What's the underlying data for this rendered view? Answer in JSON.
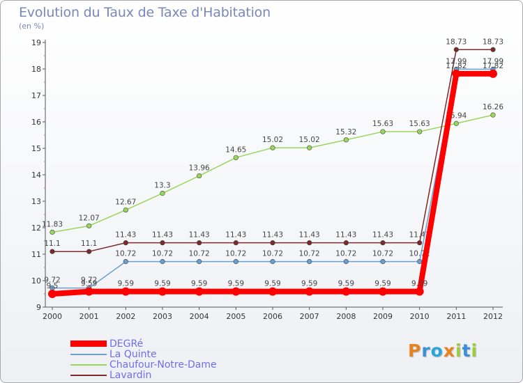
{
  "header": {
    "title": "Evolution du Taux de Taxe d'Habitation",
    "subtitle": "(en %)"
  },
  "logo": {
    "letters": [
      "P",
      "r",
      "o",
      "x",
      "i",
      "t",
      "i"
    ],
    "colors": [
      "#e8821e",
      "#3a8fd6",
      "#2aa7d8",
      "#e8821e",
      "#9ccc3b",
      "#3a8fd6",
      "#9ccc3b"
    ]
  },
  "chart_data": {
    "type": "line",
    "x": [
      "2000",
      "2001",
      "2002",
      "2003",
      "2004",
      "2005",
      "2006",
      "2007",
      "2008",
      "2009",
      "2010",
      "2011",
      "2012"
    ],
    "ylim": [
      9,
      19
    ],
    "yticks": [
      "9",
      "10",
      "11",
      "12",
      "13",
      "14",
      "15",
      "16",
      "17",
      "18",
      "19"
    ],
    "grid": false,
    "legend_position": "bottom-left",
    "series": [
      {
        "name": "Chaufour-Notre-Dame",
        "color": "#99d65c",
        "values": [
          11.83,
          12.07,
          12.67,
          13.3,
          13.96,
          14.65,
          15.02,
          15.02,
          15.32,
          15.63,
          15.63,
          15.94,
          16.26
        ],
        "labels": [
          "11.83",
          "12.07",
          "12.67",
          "13.3",
          "13.96",
          "14.65",
          "15.02",
          "15.02",
          "15.32",
          "15.63",
          "15.63",
          "15.94",
          "16.26"
        ]
      },
      {
        "name": "Lavardin",
        "color": "#7a2a2a",
        "values": [
          11.1,
          11.1,
          11.43,
          11.43,
          11.43,
          11.43,
          11.43,
          11.43,
          11.43,
          11.43,
          11.43,
          18.73,
          18.73
        ],
        "labels": [
          "11.1",
          "11.1",
          "11.43",
          "11.43",
          "11.43",
          "11.43",
          "11.43",
          "11.43",
          "11.43",
          "11.43",
          "11.43",
          "18.73",
          "18.73"
        ]
      },
      {
        "name": "La Quinte",
        "color": "#6a9fd0",
        "values": [
          9.72,
          9.72,
          10.72,
          10.72,
          10.72,
          10.72,
          10.72,
          10.72,
          10.72,
          10.72,
          10.72,
          17.99,
          17.99
        ],
        "labels": [
          "9.72",
          "9.72",
          "10.72",
          "10.72",
          "10.72",
          "10.72",
          "10.72",
          "10.72",
          "10.72",
          "10.72",
          "10.72",
          "17.99",
          "17.99"
        ]
      },
      {
        "name": "DEGRé",
        "color": "#ff0000",
        "values": [
          9.5,
          9.59,
          9.59,
          9.59,
          9.59,
          9.59,
          9.59,
          9.59,
          9.59,
          9.59,
          9.59,
          17.82,
          17.82
        ],
        "labels": [
          "9.5",
          "9.59",
          "9.59",
          "9.59",
          "9.59",
          "9.59",
          "9.59",
          "9.59",
          "9.59",
          "9.59",
          "9.59",
          "17.82",
          "17.82"
        ]
      }
    ],
    "legend": [
      {
        "name": "DEGRé",
        "color": "#ff0000"
      },
      {
        "name": "La Quinte",
        "color": "#6a9fd0"
      },
      {
        "name": "Chaufour-Notre-Dame",
        "color": "#99d65c"
      },
      {
        "name": "Lavardin",
        "color": "#7a2a2a"
      }
    ]
  }
}
